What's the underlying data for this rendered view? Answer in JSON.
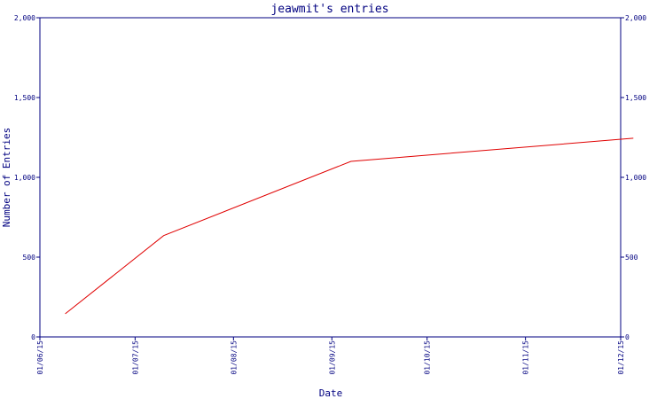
{
  "chart_data": {
    "type": "line",
    "title": "jeawmit's entries",
    "xlabel": "Date",
    "ylabel": "Number of Entries",
    "x_ticks": [
      "01/06/15",
      "01/07/15",
      "01/08/15",
      "01/09/15",
      "01/10/15",
      "01/11/15",
      "01/12/15"
    ],
    "y_ticks": [
      "0",
      "500",
      "1,000",
      "1,500",
      "2,000"
    ],
    "ylim": [
      0,
      2000
    ],
    "xlim": [
      "2015-06-01",
      "2015-12-01"
    ],
    "grid": false,
    "series": [
      {
        "x": [
          "2015-06-09",
          "2015-07-10",
          "2015-09-07",
          "2015-12-05"
        ],
        "y": [
          145,
          635,
          1100,
          1245
        ]
      }
    ],
    "colors": {
      "axis": "#000080",
      "line": "#e00000",
      "text": "#000080",
      "background": "#ffffff"
    }
  }
}
